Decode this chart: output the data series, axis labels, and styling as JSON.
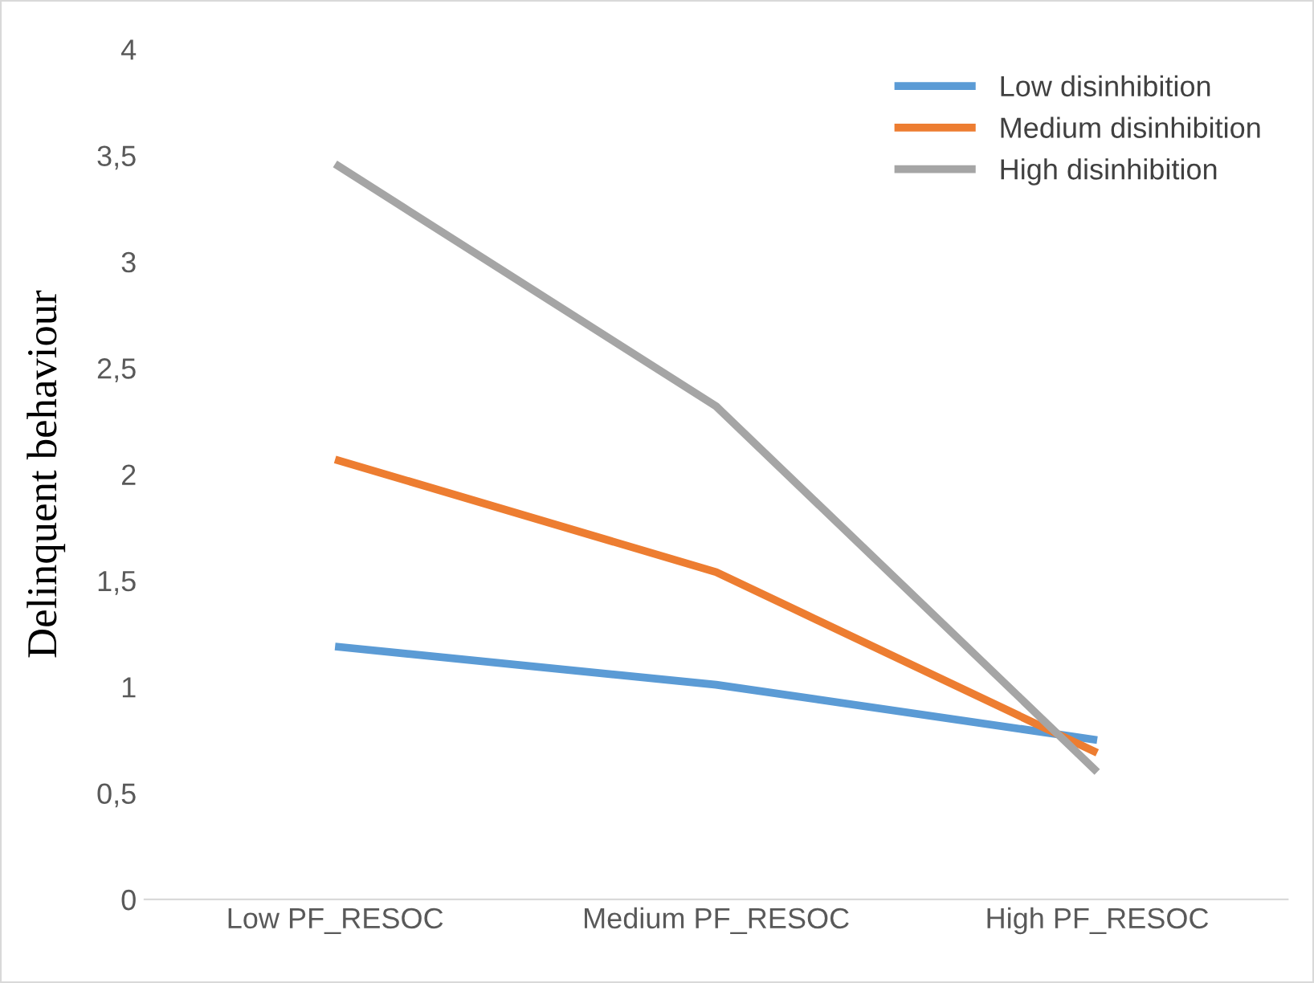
{
  "chart_data": {
    "type": "line",
    "ylabel": "Delinquent behaviour",
    "categories": [
      "Low PF_RESOC",
      "Medium PF_RESOC",
      "High PF_RESOC"
    ],
    "series": [
      {
        "name": "Low disinhibition",
        "color": "#5b9bd5",
        "values": [
          1.19,
          1.01,
          0.75
        ]
      },
      {
        "name": "Medium disinhibition",
        "color": "#ed7d31",
        "values": [
          2.07,
          1.54,
          0.69
        ]
      },
      {
        "name": "High disinhibition",
        "color": "#a5a5a5",
        "values": [
          3.46,
          2.32,
          0.6
        ]
      }
    ],
    "ylim": [
      0,
      4
    ],
    "yticks": [
      0,
      {
        "value": 0.5,
        "label": "0,5"
      },
      1,
      {
        "value": 1.5,
        "label": "1,5"
      },
      2,
      {
        "value": 2.5,
        "label": "2,5"
      },
      3,
      {
        "value": 3.5,
        "label": "3,5"
      },
      4
    ],
    "grid": false,
    "legend": "top right",
    "marker": "none",
    "line_style": "solid"
  }
}
